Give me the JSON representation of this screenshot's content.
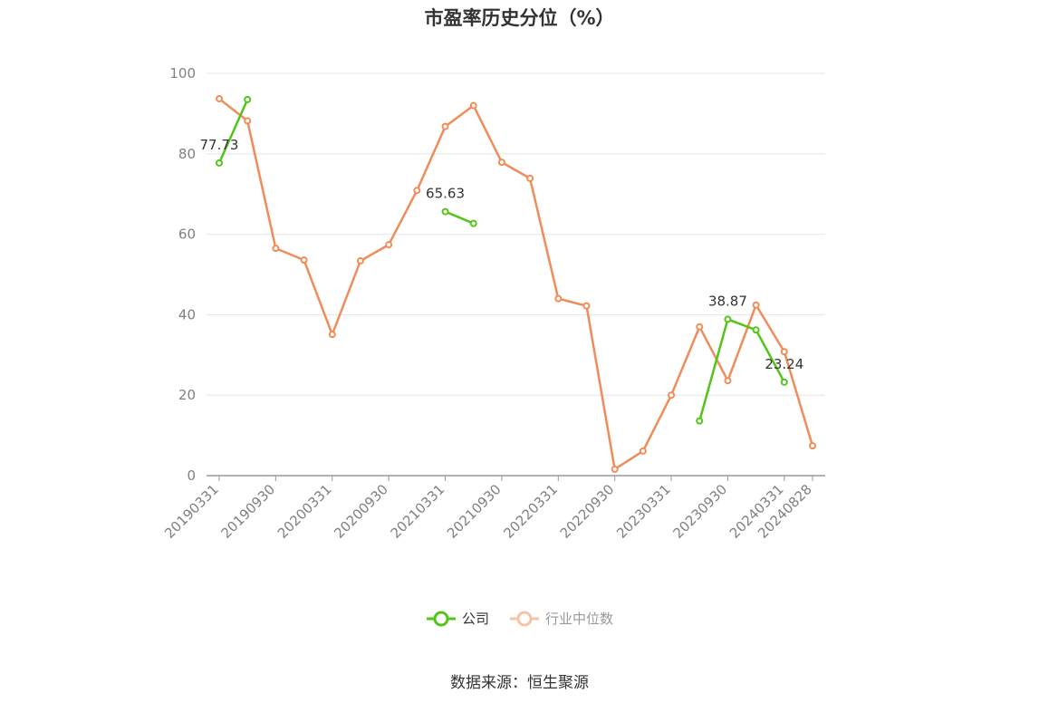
{
  "chart_data": {
    "type": "line",
    "title": "市盈率历史分位（%）",
    "xlabel": "",
    "ylabel": "",
    "ylim": [
      0,
      100
    ],
    "yticks": [
      0,
      20,
      40,
      60,
      80,
      100
    ],
    "x": [
      "20190331",
      "20190630",
      "20190930",
      "20191231",
      "20200331",
      "20200630",
      "20200930",
      "20201231",
      "20210331",
      "20210630",
      "20210930",
      "20211231",
      "20220331",
      "20220630",
      "20220930",
      "20221231",
      "20230331",
      "20230630",
      "20230930",
      "20231231",
      "20240331",
      "20240828"
    ],
    "xtick_labels": [
      "20190331",
      "20190930",
      "20200331",
      "20200930",
      "20210331",
      "20210930",
      "20220331",
      "20220930",
      "20230331",
      "20230930",
      "20240331",
      "20240828"
    ],
    "series": [
      {
        "name": "公司",
        "color": "#52c41a",
        "values": [
          77.73,
          93.5,
          null,
          null,
          null,
          null,
          null,
          null,
          65.63,
          62.7,
          null,
          null,
          null,
          null,
          null,
          null,
          null,
          13.6,
          38.87,
          36.2,
          23.24,
          null
        ],
        "point_labels": {
          "0": "77.73",
          "8": "65.63",
          "18": "38.87",
          "20": "23.24"
        }
      },
      {
        "name": "行业中位数",
        "color": "#f08c5a",
        "values": [
          93.7,
          88.2,
          56.5,
          53.6,
          35.1,
          53.4,
          57.4,
          70.9,
          86.8,
          92.0,
          77.9,
          73.9,
          44.0,
          42.2,
          1.6,
          6.1,
          20.0,
          37.0,
          23.6,
          42.4,
          30.8,
          7.4
        ]
      }
    ],
    "legend_position": "bottom",
    "grid": true
  },
  "legend": {
    "company": "公司",
    "industry": "行业中位数"
  },
  "source_text": "数据来源：恒生聚源"
}
